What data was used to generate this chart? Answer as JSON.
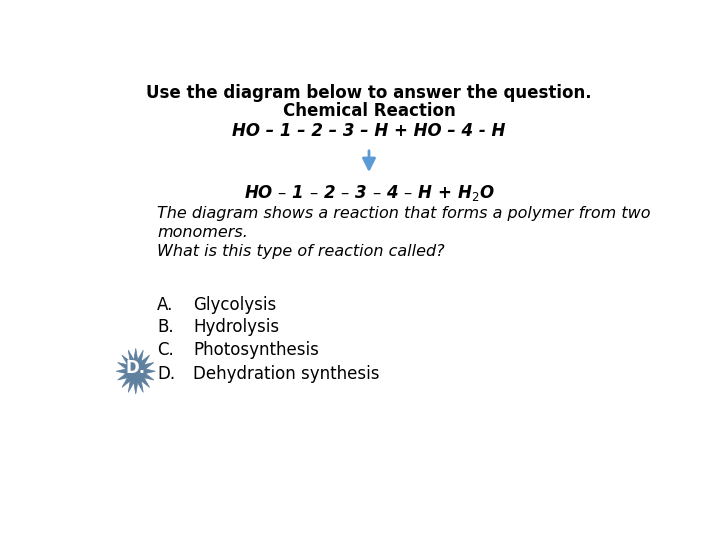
{
  "title_line1": "Use the diagram below to answer the question.",
  "title_line2": "Chemical Reaction",
  "reaction_top": "HO – 1 – 2 – 3 – H + HO – 4 - H",
  "reaction_bottom_main": "HO – 1 – 2 – 3 – 4 – H + H",
  "reaction_bottom_end": "O",
  "description_line1": "The diagram shows a reaction that forms a polymer from two",
  "description_line2": "monomers.",
  "question": "What is this type of reaction called?",
  "options": [
    {
      "letter": "A.",
      "text": "Glycolysis"
    },
    {
      "letter": "B.",
      "text": "Hydrolysis"
    },
    {
      "letter": "C.",
      "text": "Photosynthesis"
    },
    {
      "letter": "D.",
      "text": "Dehydration synthesis"
    }
  ],
  "arrow_color": "#5b9bd5",
  "starburst_color": "#6080a0",
  "background_color": "#ffffff",
  "title_fontsize": 12,
  "reaction_fontsize": 12,
  "desc_fontsize": 11.5,
  "option_fontsize": 12
}
